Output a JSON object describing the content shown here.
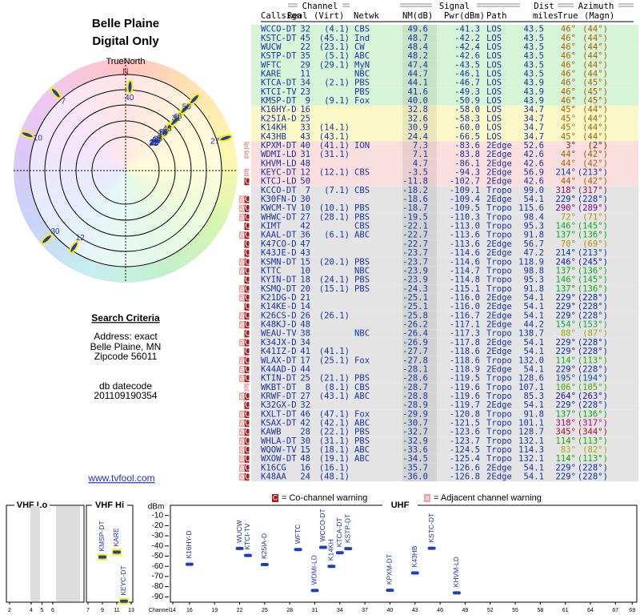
{
  "header": {
    "title": "Belle Plaine",
    "subtitle": "Digital Only",
    "north_label": "TrueNorth",
    "north_marker": "N"
  },
  "criteria": {
    "title": "Search Criteria",
    "lines": [
      "Address: exact",
      "Belle Plaine, MN",
      "Zipcode 56011"
    ],
    "db_lines": [
      "db datecode",
      "201109190354"
    ],
    "link": "www.tvfool.com"
  },
  "table": {
    "groups": [
      "Channel",
      "Signal",
      "Dist",
      "Azimuth"
    ],
    "headers": [
      "Callsign",
      "Real",
      "(Virt)",
      "Netwk",
      "NM(dB)",
      "Pwr(dBm)",
      "Path",
      "miles",
      "True",
      "(Magn)"
    ],
    "rows": [
      [
        "",
        "WCCO-DT",
        "32",
        "(4.1)",
        "CBS",
        "49.6",
        "-41.3",
        "LOS",
        "43.5",
        "46°",
        "(44°)"
      ],
      [
        "",
        "KSTC-DT",
        "45",
        "(45.1)",
        "Ind",
        "48.7",
        "-42.2",
        "LOS",
        "43.5",
        "46°",
        "(44°)"
      ],
      [
        "",
        "WUCW",
        "22",
        "(23.1)",
        "CW",
        "48.4",
        "-42.4",
        "LOS",
        "43.5",
        "46°",
        "(44°)"
      ],
      [
        "",
        "KSTP-DT",
        "35",
        "(5.1)",
        "ABC",
        "48.2",
        "-42.6",
        "LOS",
        "43.5",
        "46°",
        "(44°)"
      ],
      [
        "",
        "WFTC",
        "29",
        "(29.1)",
        "MyN",
        "47.4",
        "-43.5",
        "LOS",
        "43.5",
        "46°",
        "(44°)"
      ],
      [
        "",
        "KARE",
        "11",
        "",
        "NBC",
        "44.7",
        "-46.1",
        "LOS",
        "43.5",
        "46°",
        "(44°)"
      ],
      [
        "",
        "KTCA-DT",
        "34",
        "(2.1)",
        "PBS",
        "44.1",
        "-46.7",
        "LOS",
        "43.9",
        "46°",
        "(45°)"
      ],
      [
        "",
        "KTCI-TV",
        "23",
        "",
        "PBS",
        "41.6",
        "-49.3",
        "LOS",
        "43.9",
        "46°",
        "(45°)"
      ],
      [
        "",
        "KMSP-DT",
        "9",
        "(9.1)",
        "Fox",
        "40.0",
        "-50.9",
        "LOS",
        "43.9",
        "46°",
        "(45°)"
      ],
      [
        "",
        "K16HY-D",
        "16",
        "",
        "",
        "32.8",
        "-58.0",
        "LOS",
        "34.7",
        "45°",
        "(44°)"
      ],
      [
        "",
        "K25IA-D",
        "25",
        "",
        "",
        "32.6",
        "-58.3",
        "LOS",
        "34.7",
        "45°",
        "(44°)"
      ],
      [
        "",
        "K14KH",
        "33",
        "(14.1)",
        "",
        "30.9",
        "-60.0",
        "LOS",
        "34.7",
        "45°",
        "(44°)"
      ],
      [
        "",
        "K43HB",
        "43",
        "(43.1)",
        "",
        "24.4",
        "-66.5",
        "LOS",
        "34.7",
        "45°",
        "(44°)"
      ],
      [
        "a",
        "KPXM-DT",
        "40",
        "(41.1)",
        "ION",
        "7.3",
        "-83.6",
        "2Edge",
        "52.6",
        "3°",
        "(2°)"
      ],
      [
        "a",
        "WDMI-LD",
        "31",
        "(31.1)",
        "",
        "7.1",
        "-83.8",
        "2Edge",
        "42.6",
        "44°",
        "(42°)"
      ],
      [
        "",
        "KHVM-LD",
        "48",
        "",
        "",
        "4.7",
        "-86.1",
        "2Edge",
        "42.6",
        "44°",
        "(42°)"
      ],
      [
        "a",
        "KEYC-DT",
        "12",
        "(12.1)",
        "CBS",
        "-3.5",
        "-94.3",
        "2Edge",
        "56.9",
        "214°",
        "(213°)"
      ],
      [
        "C",
        "KTCJ-LD",
        "50",
        "",
        "",
        "-11.8",
        "-102.7",
        "2Edge",
        "42.6",
        "44°",
        "(42°)"
      ],
      [
        "",
        "KCCO-DT",
        "7",
        "(7.1)",
        "CBS",
        "-18.2",
        "-109.1",
        "Tropo",
        "99.0",
        "318°",
        "(317°)"
      ],
      [
        "aC",
        "K30FN-D",
        "30",
        "",
        "",
        "-18.6",
        "-109.4",
        "2Edge",
        "54.1",
        "229°",
        "(228°)"
      ],
      [
        "aC",
        "KWCM-TV",
        "10",
        "(10.1)",
        "PBS",
        "-18.7",
        "-109.5",
        "Tropo",
        "115.6",
        "290°",
        "(289°)"
      ],
      [
        "aC",
        "WHWC-DT",
        "27",
        "(28.1)",
        "PBS",
        "-19.5",
        "-110.3",
        "Tropo",
        "98.4",
        "72°",
        "(71°)"
      ],
      [
        "C",
        "KIMT",
        "42",
        "",
        "CBS",
        "-22.1",
        "-113.0",
        "Tropo",
        "95.3",
        "146°",
        "(145°)"
      ],
      [
        "aC",
        "KAAL-DT",
        "36",
        "(6.1)",
        "ABC",
        "-22.7",
        "-113.6",
        "Tropo",
        "91.8",
        "137°",
        "(136°)"
      ],
      [
        "C",
        "K47CO-D",
        "47",
        "",
        "",
        "-22.7",
        "-113.6",
        "2Edge",
        "56.7",
        "70°",
        "(69°)"
      ],
      [
        "C",
        "K43JE-D",
        "43",
        "",
        "",
        "-23.7",
        "-114.6",
        "2Edge",
        "47.2",
        "214°",
        "(213°)"
      ],
      [
        "aC",
        "KSMN-DT",
        "15",
        "(20.1)",
        "PBS",
        "-23.7",
        "-114.6",
        "Tropo",
        "118.9",
        "246°",
        "(245°)"
      ],
      [
        "aC",
        "KTTC",
        "10",
        "",
        "NBC",
        "-23.9",
        "-114.7",
        "Tropo",
        "98.8",
        "137°",
        "(136°)"
      ],
      [
        "C",
        "KYIN-DT",
        "18",
        "(24.1)",
        "PBS",
        "-23.9",
        "-114.8",
        "Tropo",
        "95.3",
        "146°",
        "(145°)"
      ],
      [
        "aC",
        "KSMQ-DT",
        "20",
        "(15.1)",
        "PBS",
        "-24.3",
        "-115.1",
        "Tropo",
        "91.8",
        "137°",
        "(136°)"
      ],
      [
        "aC",
        "K21DG-D",
        "21",
        "",
        "",
        "-25.1",
        "-116.0",
        "2Edge",
        "54.1",
        "229°",
        "(228°)"
      ],
      [
        "C",
        "K14KE-D",
        "14",
        "",
        "",
        "-25.1",
        "-116.0",
        "2Edge",
        "54.1",
        "229°",
        "(228°)"
      ],
      [
        "aC",
        "K26CS-D",
        "26",
        "(26.1)",
        "",
        "-25.8",
        "-116.7",
        "2Edge",
        "54.1",
        "229°",
        "(228°)"
      ],
      [
        "aC",
        "K48KJ-D",
        "48",
        "",
        "",
        "-26.2",
        "-117.1",
        "2Edge",
        "44.2",
        "154°",
        "(153°)"
      ],
      [
        "C",
        "WEAU-TV",
        "38",
        "",
        "NBC",
        "-26.4",
        "-117.3",
        "Tropo",
        "138.7",
        "88°",
        "(87°)"
      ],
      [
        "aC",
        "K34JX-D",
        "34",
        "",
        "",
        "-26.9",
        "-117.8",
        "2Edge",
        "54.1",
        "229°",
        "(228°)"
      ],
      [
        "C",
        "K41IZ-D",
        "41",
        "(41.1)",
        "",
        "-27.7",
        "-118.6",
        "2Edge",
        "54.1",
        "229°",
        "(228°)"
      ],
      [
        "aC",
        "WLAX-DT",
        "17",
        "(25.1)",
        "Fox",
        "-27.8",
        "-118.6",
        "Tropo",
        "132.0",
        "114°",
        "(113°)"
      ],
      [
        "aC",
        "K44AD-D",
        "44",
        "",
        "",
        "-28.1",
        "-118.9",
        "2Edge",
        "54.1",
        "229°",
        "(228°)"
      ],
      [
        "aC",
        "KTIN-DT",
        "25",
        "(21.1)",
        "PBS",
        "-28.6",
        "-119.5",
        "Tropo",
        "128.6",
        "195°",
        "(194°)"
      ],
      [
        "a",
        "WKBT-DT",
        "8",
        "(8.1)",
        "CBS",
        "-28.7",
        "-119.6",
        "Tropo",
        "107.1",
        "106°",
        "(105°)"
      ],
      [
        "aC",
        "KRWF-DT",
        "27",
        "(43.1)",
        "ABC",
        "-28.8",
        "-119.6",
        "Tropo",
        "85.3",
        "264°",
        "(263°)"
      ],
      [
        "C",
        "K32GX-D",
        "32",
        "",
        "",
        "-28.9",
        "-119.7",
        "2Edge",
        "54.1",
        "229°",
        "(228°)"
      ],
      [
        "aC",
        "KXLT-DT",
        "46",
        "(47.1)",
        "Fox",
        "-29.9",
        "-120.8",
        "Tropo",
        "91.8",
        "137°",
        "(136°)"
      ],
      [
        "aC",
        "KSAX-DT",
        "42",
        "(42.1)",
        "ABC",
        "-30.7",
        "-121.5",
        "Tropo",
        "101.1",
        "318°",
        "(317°)"
      ],
      [
        "aC",
        "KAWB",
        "28",
        "(22.1)",
        "PBS",
        "-32.7",
        "-123.6",
        "Tropo",
        "128.7",
        "345°",
        "(344°)"
      ],
      [
        "aC",
        "WHLA-DT",
        "30",
        "(31.1)",
        "PBS",
        "-32.9",
        "-123.7",
        "Tropo",
        "132.1",
        "114°",
        "(113°)"
      ],
      [
        "aC",
        "WQOW-TV",
        "15",
        "(18.1)",
        "ABC",
        "-33.6",
        "-124.5",
        "Tropo",
        "114.3",
        "83°",
        "(82°)"
      ],
      [
        "aC",
        "WXOW-DT",
        "48",
        "(19.1)",
        "ABC",
        "-34.5",
        "-125.4",
        "Tropo",
        "132.1",
        "114°",
        "(113°)"
      ],
      [
        "aC",
        "K16CG",
        "16",
        "(16.1)",
        "",
        "-35.7",
        "-126.6",
        "2Edge",
        "54.1",
        "229°",
        "(228°)"
      ],
      [
        "aC",
        "K48AA",
        "24",
        "(48.1)",
        "",
        "-36.0",
        "-126.8",
        "2Edge",
        "54.1",
        "229°",
        "(228°)"
      ]
    ]
  },
  "legend": [
    {
      "flag": "C",
      "text": "= Co-channel warning"
    },
    {
      "flag": "a",
      "text": "= Adjacent channel warning"
    }
  ],
  "channel_chart": {
    "bands": [
      "VHF Lo",
      "VHF Hi",
      "UHF"
    ],
    "y_label": "dBm",
    "x_label": "Channel",
    "ylim": [
      0,
      -100
    ],
    "yticks": [
      -10,
      -20,
      -30,
      -40,
      -50,
      -60,
      -70,
      -80,
      -90
    ],
    "vhf_lo_ticks": [
      2,
      4,
      5,
      6
    ],
    "vhf_hi_ticks": [
      7,
      9,
      11,
      13
    ],
    "uhf_ticks": [
      14,
      16,
      19,
      22,
      25,
      28,
      31,
      34,
      37,
      40,
      43,
      46,
      49,
      52,
      55,
      58,
      61,
      64,
      67,
      69
    ]
  }
}
